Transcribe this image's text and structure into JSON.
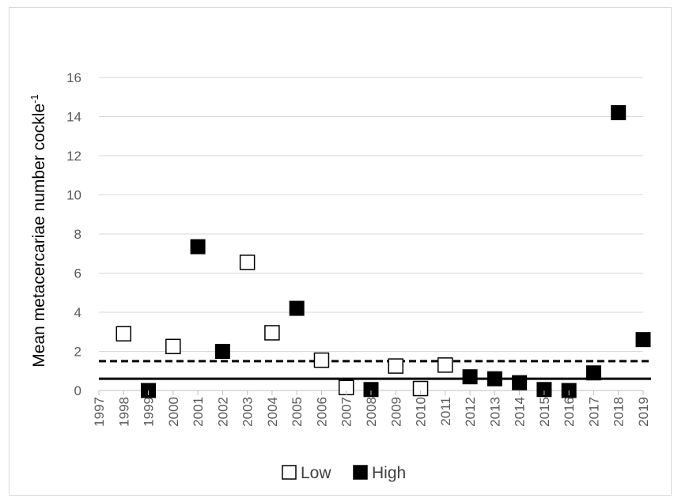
{
  "chart_data": {
    "type": "scatter",
    "ylabel": "Mean metacercariae number  cockle",
    "ylabel_superscript": "-1",
    "ylim": [
      0,
      16
    ],
    "yticks": [
      0,
      2,
      4,
      6,
      8,
      10,
      12,
      14,
      16
    ],
    "categories": [
      "1997",
      "1998",
      "1999",
      "2000",
      "2001",
      "2002",
      "2003",
      "2004",
      "2005",
      "2006",
      "2007",
      "2008",
      "2009",
      "2010",
      "2011",
      "2012",
      "2013",
      "2014",
      "2015",
      "2016",
      "2017",
      "2018",
      "2019"
    ],
    "grid": true,
    "legend_position": "bottom",
    "series": [
      {
        "name": "Low",
        "marker": "open-square",
        "points": [
          {
            "x": "1998",
            "y": 2.9
          },
          {
            "x": "2000",
            "y": 2.25
          },
          {
            "x": "2003",
            "y": 6.55
          },
          {
            "x": "2004",
            "y": 2.95
          },
          {
            "x": "2006",
            "y": 1.55
          },
          {
            "x": "2007",
            "y": 0.15
          },
          {
            "x": "2009",
            "y": 1.25
          },
          {
            "x": "2010",
            "y": 0.1
          },
          {
            "x": "2011",
            "y": 1.3
          }
        ]
      },
      {
        "name": "High",
        "marker": "filled-square",
        "points": [
          {
            "x": "1999",
            "y": 0.0
          },
          {
            "x": "2001",
            "y": 7.35
          },
          {
            "x": "2002",
            "y": 2.0
          },
          {
            "x": "2005",
            "y": 4.2
          },
          {
            "x": "2008",
            "y": 0.05
          },
          {
            "x": "2012",
            "y": 0.7
          },
          {
            "x": "2013",
            "y": 0.6
          },
          {
            "x": "2014",
            "y": 0.4
          },
          {
            "x": "2015",
            "y": 0.05
          },
          {
            "x": "2016",
            "y": 0.0
          },
          {
            "x": "2017",
            "y": 0.9
          },
          {
            "x": "2018",
            "y": 14.2
          },
          {
            "x": "2019",
            "y": 2.6
          }
        ]
      }
    ],
    "reference_lines": [
      {
        "style": "dashed",
        "y": 1.5
      },
      {
        "style": "solid",
        "y": 0.6
      }
    ],
    "colors": {
      "grid": "#d9d9d9",
      "axis": "#bfbfbf",
      "marker": "#000000",
      "tick_text": "#595959"
    }
  }
}
